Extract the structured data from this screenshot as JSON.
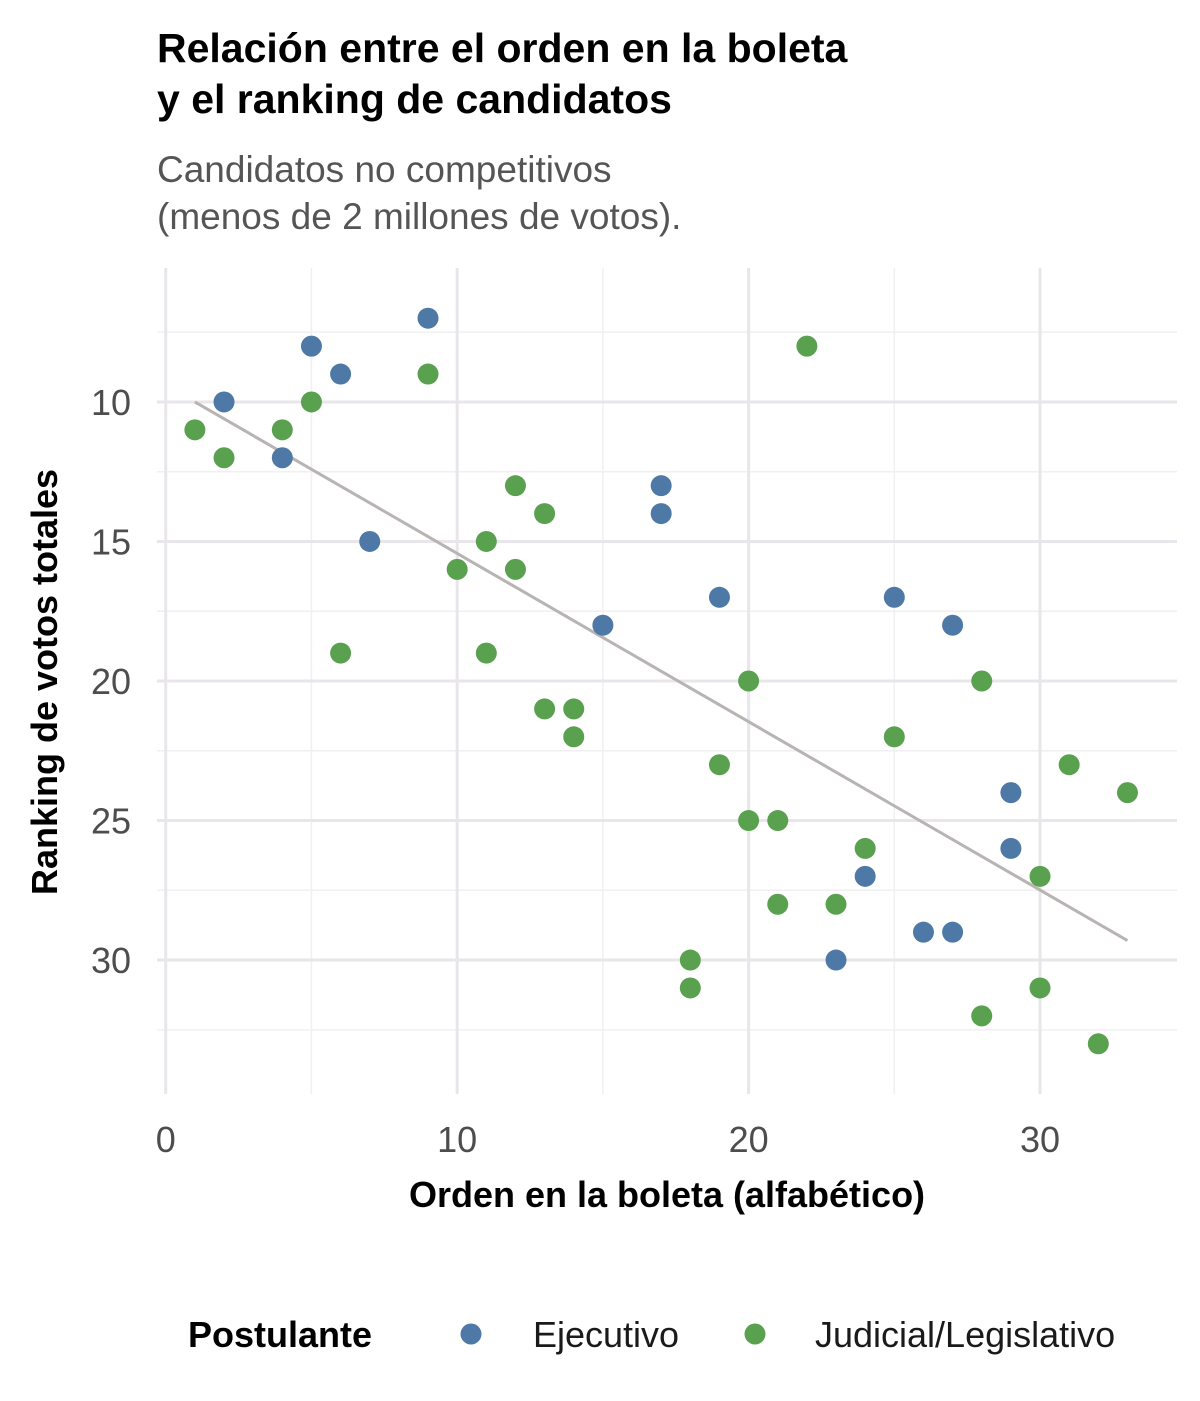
{
  "chart_data": {
    "type": "scatter",
    "title_lines": [
      "Relación entre el orden en la boleta",
      "y el ranking de candidatos"
    ],
    "subtitle_lines": [
      "Candidatos no competitivos",
      "(menos de 2 millones de votos)."
    ],
    "xlabel": "Orden en la boleta (alfabético)",
    "ylabel": "Ranking de votos totales",
    "xlim": [
      -0.3,
      34.7
    ],
    "ylim": [
      5.2,
      34.8
    ],
    "y_reversed": true,
    "x_ticks": [
      0,
      10,
      20,
      30
    ],
    "y_ticks": [
      10,
      15,
      20,
      25,
      30
    ],
    "x_tick_labels": [
      "0",
      "10",
      "20",
      "30"
    ],
    "y_tick_labels": [
      "10",
      "15",
      "20",
      "25",
      "30"
    ],
    "grid": true,
    "legend": {
      "title": "Postulante",
      "position": "bottom",
      "entries": [
        "Ejecutivo",
        "Judicial/Legislativo"
      ]
    },
    "colors": {
      "Ejecutivo": "#4e79a7",
      "Judicial/Legislativo": "#59a14f",
      "trend": "#b8b4b4"
    },
    "trend_line": {
      "x": [
        1,
        33
      ],
      "y": [
        10.0,
        29.3
      ]
    },
    "series": [
      {
        "name": "Ejecutivo",
        "points": [
          [
            2,
            10
          ],
          [
            4,
            12
          ],
          [
            5,
            8
          ],
          [
            6,
            9
          ],
          [
            7,
            15
          ],
          [
            9,
            7
          ],
          [
            15,
            18
          ],
          [
            17,
            13
          ],
          [
            17,
            14
          ],
          [
            19,
            17
          ],
          [
            23,
            30
          ],
          [
            24,
            27
          ],
          [
            25,
            17
          ],
          [
            26,
            29
          ],
          [
            27,
            18
          ],
          [
            27,
            29
          ],
          [
            29,
            24
          ],
          [
            29,
            26
          ]
        ]
      },
      {
        "name": "Judicial/Legislativo",
        "points": [
          [
            1,
            11
          ],
          [
            2,
            12
          ],
          [
            4,
            11
          ],
          [
            5,
            10
          ],
          [
            6,
            19
          ],
          [
            9,
            9
          ],
          [
            10,
            16
          ],
          [
            11,
            15
          ],
          [
            11,
            19
          ],
          [
            12,
            13
          ],
          [
            12,
            16
          ],
          [
            13,
            14
          ],
          [
            13,
            21
          ],
          [
            14,
            21
          ],
          [
            14,
            22
          ],
          [
            18,
            30
          ],
          [
            18,
            31
          ],
          [
            19,
            23
          ],
          [
            20,
            20
          ],
          [
            20,
            25
          ],
          [
            21,
            25
          ],
          [
            21,
            28
          ],
          [
            22,
            8
          ],
          [
            23,
            28
          ],
          [
            24,
            26
          ],
          [
            25,
            22
          ],
          [
            28,
            20
          ],
          [
            28,
            32
          ],
          [
            30,
            27
          ],
          [
            30,
            31
          ],
          [
            31,
            23
          ],
          [
            32,
            33
          ],
          [
            33,
            24
          ]
        ]
      }
    ]
  }
}
